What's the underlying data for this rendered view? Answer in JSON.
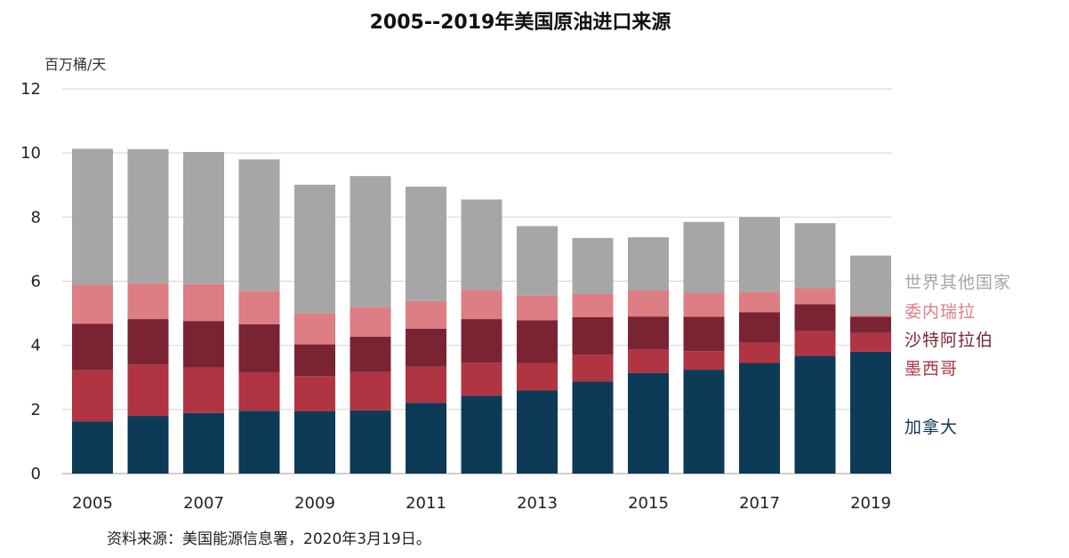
{
  "chart_data": {
    "type": "bar",
    "stacked": true,
    "title": "2005--2019年美国原油进口来源",
    "unit_label": "百万桶/天",
    "ylim": [
      0,
      12
    ],
    "y_ticks": [
      0,
      2,
      4,
      6,
      8,
      10,
      12
    ],
    "grid": true,
    "categories": [
      "2005",
      "2006",
      "2007",
      "2008",
      "2009",
      "2010",
      "2011",
      "2012",
      "2013",
      "2014",
      "2015",
      "2016",
      "2017",
      "2018",
      "2019"
    ],
    "x_tick_labels": [
      "2005",
      "2007",
      "2009",
      "2011",
      "2013",
      "2015",
      "2017",
      "2019"
    ],
    "series": [
      {
        "name": "加拿大",
        "color": "#0d3a57",
        "values": [
          1.63,
          1.8,
          1.89,
          1.96,
          1.94,
          1.97,
          2.21,
          2.43,
          2.59,
          2.87,
          3.14,
          3.24,
          3.45,
          3.67,
          3.8
        ]
      },
      {
        "name": "墨西哥",
        "color": "#b03442",
        "values": [
          1.6,
          1.6,
          1.42,
          1.2,
          1.1,
          1.2,
          1.12,
          1.03,
          0.86,
          0.84,
          0.73,
          0.58,
          0.64,
          0.77,
          0.59
        ]
      },
      {
        "name": "沙特阿拉伯",
        "color": "#7a2433",
        "values": [
          1.44,
          1.42,
          1.45,
          1.5,
          0.99,
          1.1,
          1.19,
          1.36,
          1.33,
          1.17,
          1.03,
          1.07,
          0.94,
          0.84,
          0.5
        ]
      },
      {
        "name": "委内瑞拉",
        "color": "#dc7e84",
        "values": [
          1.22,
          1.12,
          1.15,
          1.04,
          0.98,
          0.91,
          0.86,
          0.91,
          0.77,
          0.72,
          0.81,
          0.75,
          0.63,
          0.5,
          0.06
        ]
      },
      {
        "name": "世界其他国家",
        "color": "#a6a6a6",
        "values": [
          4.24,
          4.18,
          4.12,
          4.1,
          4.0,
          4.1,
          3.57,
          2.82,
          2.17,
          1.75,
          1.66,
          2.21,
          2.34,
          2.03,
          1.85
        ]
      }
    ],
    "legend_placement": "right"
  },
  "source_text": "资料来源：美国能源信息署，2020年3月19日。"
}
